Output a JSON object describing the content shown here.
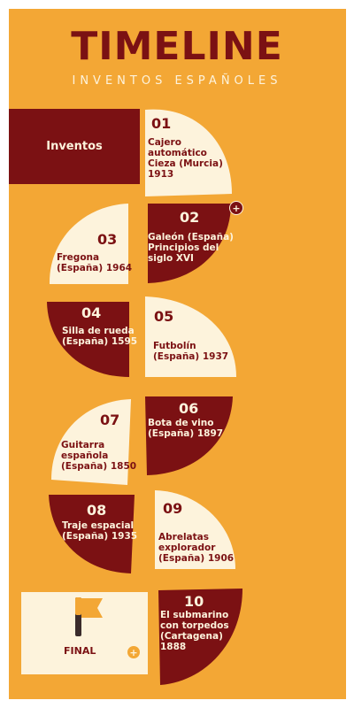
{
  "title": "TIMELINE",
  "subtitle": "INVENTOS ESPAÑOLES",
  "header_label": "Inventos",
  "steps": [
    {
      "num": "01",
      "lines": [
        "Cajero",
        "automático",
        "Cieza (Murcia)",
        "1913"
      ]
    },
    {
      "num": "02",
      "lines": [
        "Galeón (España)",
        "Principios del",
        "siglo XVI"
      ]
    },
    {
      "num": "03",
      "lines": [
        "Fregona",
        "(España) 1964"
      ]
    },
    {
      "num": "04",
      "lines": [
        "Silla de rueda",
        "(España) 1595"
      ]
    },
    {
      "num": "05",
      "lines": [
        "Futbolín",
        "(España) 1937"
      ]
    },
    {
      "num": "06",
      "lines": [
        "Bota de vino",
        "(España) 1897"
      ]
    },
    {
      "num": "07",
      "lines": [
        "Guitarra",
        "española",
        "(España) 1850"
      ]
    },
    {
      "num": "08",
      "lines": [
        "Traje espacial",
        "(España) 1935"
      ]
    },
    {
      "num": "09",
      "lines": [
        "Abrelatas",
        "explorador",
        "(España) 1906"
      ]
    },
    {
      "num": "10",
      "lines": [
        "El submarino",
        "con torpedos",
        "(Cartagena)",
        "1888"
      ]
    }
  ],
  "final_label": "FINAL",
  "plus_symbol": "+",
  "colors": {
    "background": "#f3a735",
    "dark_red": "#7b1113",
    "cream": "#fdf3dc"
  },
  "icons": {
    "final": "flag-icon",
    "expand": "plus-icon"
  }
}
